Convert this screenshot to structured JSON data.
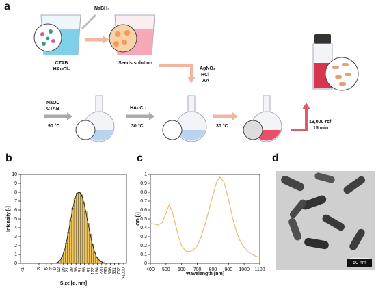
{
  "panel_a": {
    "label": "a",
    "reducer": "NaBH₄",
    "beaker1": [
      "CTAB",
      "HAuCl₄"
    ],
    "beaker2": "Seeds solution",
    "seed_reagents": [
      "AgNO₃",
      "HCl",
      "AA"
    ],
    "step1_reagents": [
      "NaOL",
      "CTAB"
    ],
    "step1_temp": "90 °C",
    "step2_reagent": "HAuCl₄",
    "step2_temp": "30 °C",
    "step3_temp": "30 °C",
    "centrifuge": [
      "13,000 rcf",
      "15 min"
    ]
  },
  "chart_data": [
    {
      "type": "histogram",
      "label": "b",
      "xlabel": "Size [d. nm]",
      "ylabel": "Intensity [-]",
      "color": "#f0c75e",
      "xlog": true,
      "bins": [
        10,
        11.6,
        13.5,
        15.6,
        18.1,
        21,
        24.4,
        28.3,
        32.8,
        38.1,
        44.2,
        51.3,
        59.5,
        69,
        80.1,
        92.9,
        107.8,
        125,
        145,
        168.3,
        195.2,
        226.5,
        262.7
      ],
      "values": [
        0.1,
        0.3,
        0.7,
        1.3,
        2.3,
        3.5,
        4.9,
        6.2,
        7.3,
        7.9,
        8.0,
        7.7,
        6.9,
        5.8,
        4.5,
        3.3,
        2.2,
        1.3,
        0.7,
        0.4,
        0.2,
        0.1
      ],
      "xlim": [
        0.85,
        1200
      ],
      "xticks": [
        {
          "value": 1,
          "label": "<1"
        },
        3,
        5,
        7,
        9,
        12,
        16,
        21,
        28,
        38,
        51,
        68,
        91,
        122,
        164,
        220,
        295,
        396,
        531,
        712,
        {
          "value": 1000,
          "label": ">1000"
        }
      ],
      "ylim": [
        0,
        10
      ],
      "yticks": [
        0,
        1,
        2,
        3,
        4,
        5,
        6,
        7,
        8,
        9,
        10
      ]
    },
    {
      "type": "line",
      "label": "c",
      "xlabel": "Wavelength [nm]",
      "ylabel": "OD [-]",
      "color": "#f2b870",
      "x": [
        400,
        425,
        450,
        475,
        500,
        520,
        540,
        560,
        580,
        600,
        625,
        650,
        675,
        700,
        725,
        750,
        775,
        800,
        825,
        845,
        870,
        900,
        925,
        950,
        975,
        1000,
        1025,
        1050,
        1075,
        1100
      ],
      "values": [
        0.45,
        0.44,
        0.43,
        0.46,
        0.56,
        0.66,
        0.58,
        0.44,
        0.3,
        0.2,
        0.14,
        0.13,
        0.15,
        0.2,
        0.3,
        0.44,
        0.6,
        0.77,
        0.92,
        0.97,
        0.92,
        0.72,
        0.52,
        0.36,
        0.25,
        0.18,
        0.13,
        0.1,
        0.08,
        0.07
      ],
      "xlim": [
        400,
        1100
      ],
      "xticks": [
        400,
        500,
        600,
        700,
        800,
        900,
        1000,
        1100
      ],
      "ylim": [
        0,
        1
      ],
      "yticks": [
        0,
        0.1,
        0.2,
        0.3,
        0.4,
        0.5,
        0.6,
        0.7,
        0.8,
        0.9,
        1
      ]
    }
  ],
  "panel_d": {
    "label": "d",
    "scale_bar": "50 nm"
  }
}
